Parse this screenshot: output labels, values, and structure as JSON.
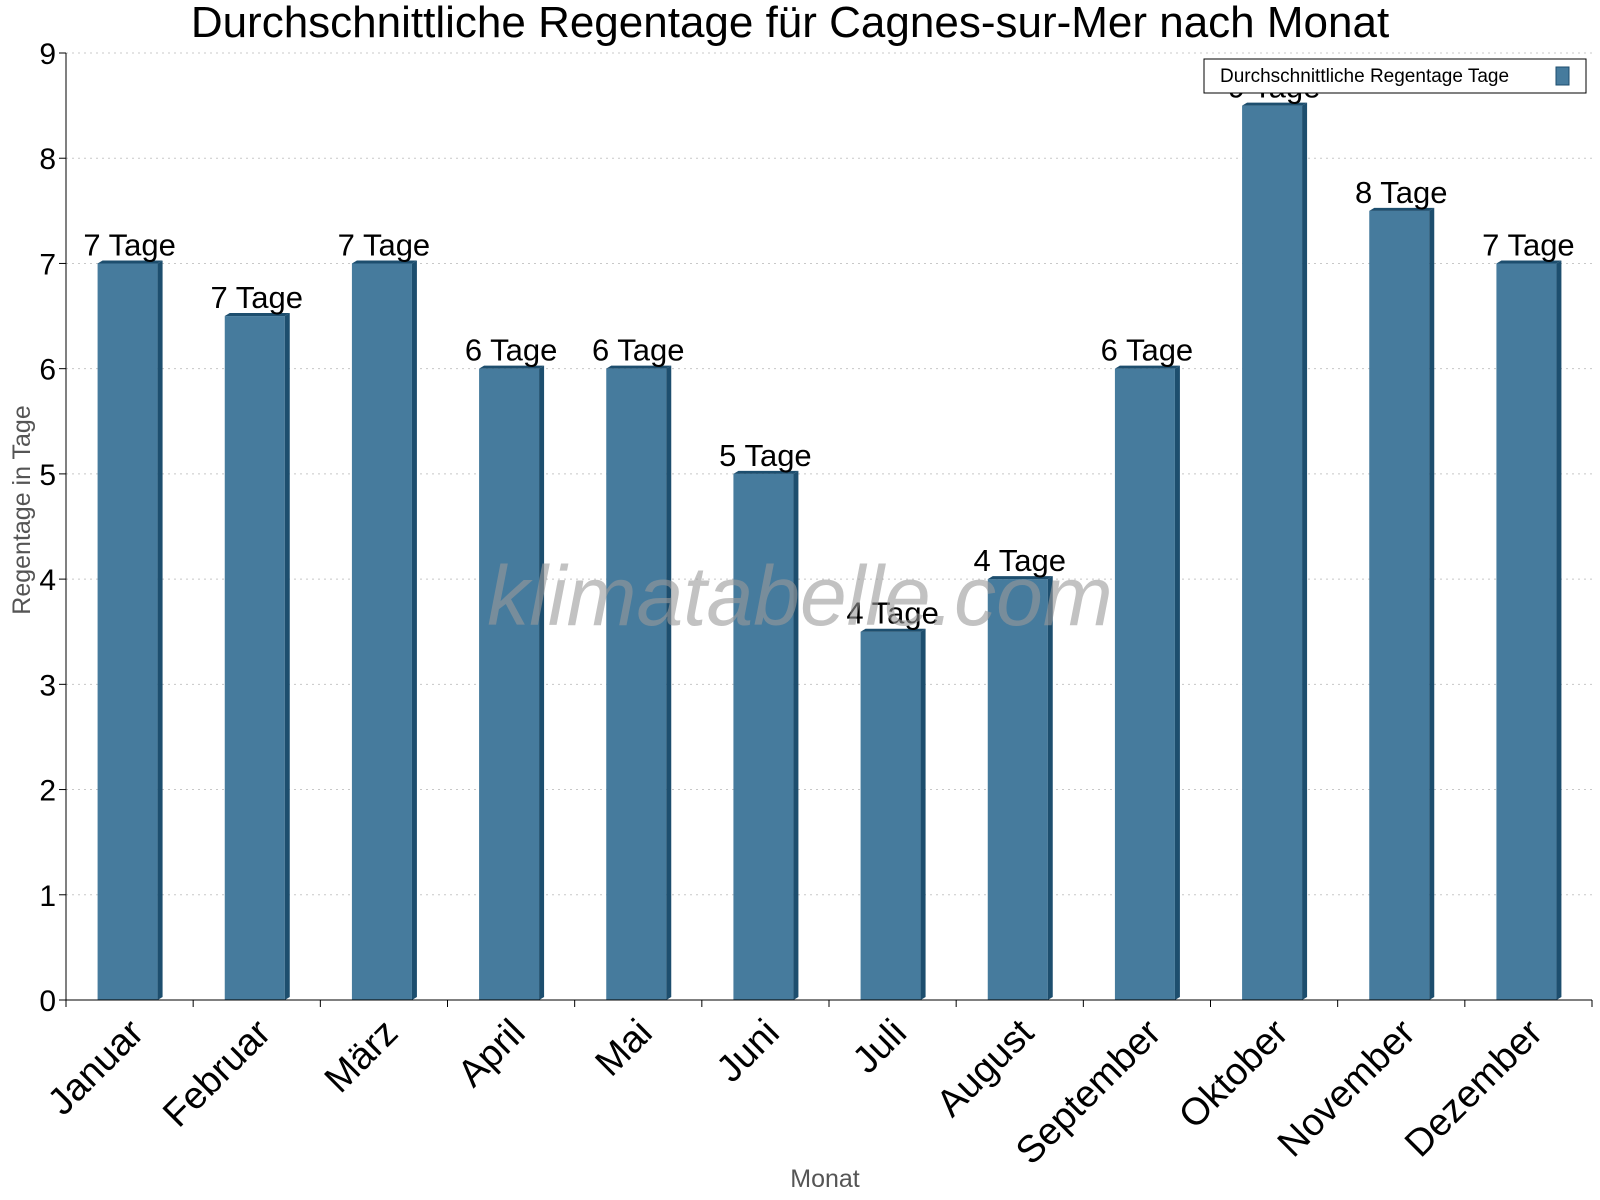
{
  "chart_data": {
    "type": "bar",
    "title": "Durchschnittliche Regentage für Cagnes-sur-Mer nach Monat",
    "xlabel": "Monat",
    "ylabel": "Regentage in Tage",
    "categories": [
      "Januar",
      "Februar",
      "März",
      "April",
      "Mai",
      "Juni",
      "Juli",
      "August",
      "September",
      "Oktober",
      "November",
      "Dezember"
    ],
    "series": [
      {
        "name": "Durchschnittliche Regentage Tage",
        "values": [
          7,
          6.5,
          7,
          6,
          6,
          5,
          3.5,
          4,
          6,
          8.5,
          7.5,
          7
        ],
        "labels": [
          "7 Tage",
          "7 Tage",
          "7 Tage",
          "6 Tage",
          "6 Tage",
          "5 Tage",
          "4 Tage",
          "4 Tage",
          "6 Tage",
          "9 Tage",
          "8 Tage",
          "7 Tage"
        ]
      }
    ],
    "ylim": [
      0,
      9
    ],
    "yticks": [
      "0",
      "1",
      "2",
      "3",
      "4",
      "5",
      "6",
      "7",
      "8",
      "9"
    ],
    "grid": true,
    "legend_position": "top-right",
    "colors": {
      "bar": "#467b9d",
      "bar_side": "#1d4e6e",
      "bar_top": "#1d4e6e",
      "grid": "#c8c8c8"
    },
    "watermark": "klimatabelle.com"
  }
}
